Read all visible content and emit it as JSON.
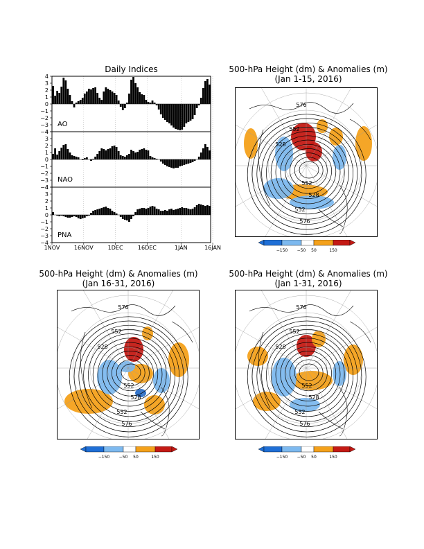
{
  "indices_title": "Daily Indices",
  "map_titles": [
    {
      "line1": "500-hPa Height (dm) & Anomalies (m)",
      "line2": "(Jan 1-15, 2016)"
    },
    {
      "line1": "500-hPa Height (dm) & Anomalies (m)",
      "line2": "(Jan 16-31, 2016)"
    },
    {
      "line1": "500-hPa Height (dm) & Anomalies (m)",
      "line2": "(Jan 1-31, 2016)"
    }
  ],
  "contour_labels": [
    "576",
    "552",
    "528",
    "552",
    "528",
    "552",
    "576"
  ],
  "colorbar": {
    "labels": [
      "-150",
      "-50",
      "50",
      "150"
    ],
    "colors": [
      "#1f6fd6",
      "#7db9ef",
      "#ffffff",
      "#f4a11b",
      "#c41a14"
    ]
  },
  "colors": {
    "positive": "#f4a11b",
    "strong_positive": "#c41a14",
    "negative": "#7db9ef",
    "strong_negative": "#2a6fc9"
  },
  "chart_data": [
    {
      "type": "bar",
      "title": "Daily Indices",
      "x_tick_labels": [
        "1NOV",
        "16NOV",
        "1DEC",
        "16DEC",
        "1JAN",
        "16JAN"
      ],
      "panels": [
        {
          "name": "AO",
          "ylim": [
            -4,
            4
          ],
          "y_ticks": [
            4,
            3,
            2,
            1,
            0,
            -1,
            -2,
            -3,
            -4
          ],
          "values": [
            2.6,
            1.2,
            1.9,
            1.6,
            2.5,
            3.8,
            3.4,
            2.2,
            1.3,
            0.4,
            -0.5,
            0.2,
            0.4,
            0.6,
            0.9,
            1.5,
            1.8,
            2.2,
            2.1,
            2.3,
            2.4,
            1.6,
            0.9,
            0.6,
            1.8,
            2.4,
            2.2,
            2.0,
            1.8,
            1.6,
            1.3,
            0.5,
            -0.4,
            -0.9,
            -0.6,
            0.2,
            1.5,
            3.5,
            3.9,
            3.0,
            2.4,
            1.7,
            1.4,
            1.3,
            0.6,
            0.3,
            0.2,
            0.5,
            0.2,
            -0.2,
            -0.8,
            -1.5,
            -2.0,
            -2.3,
            -2.6,
            -2.8,
            -3.1,
            -3.4,
            -3.6,
            -3.7,
            -3.8,
            -3.7,
            -3.3,
            -2.8,
            -2.6,
            -2.4,
            -2.2,
            -1.6,
            -0.6,
            -0.2,
            0.9,
            2.3,
            3.3,
            3.6,
            2.8
          ]
        },
        {
          "name": "NAO",
          "ylim": [
            -4,
            4
          ],
          "y_ticks": [
            4,
            3,
            2,
            1,
            0,
            -1,
            -2,
            -3,
            -4
          ],
          "values": [
            0.8,
            1.6,
            0.7,
            1.2,
            1.7,
            2.1,
            2.2,
            1.5,
            1.0,
            0.6,
            0.5,
            0.4,
            0.3,
            0.0,
            -0.1,
            0.2,
            0.3,
            0.0,
            -0.2,
            0.1,
            0.4,
            0.8,
            1.2,
            1.6,
            1.5,
            1.3,
            1.5,
            1.6,
            1.9,
            2.0,
            1.8,
            1.2,
            0.6,
            0.5,
            0.4,
            0.6,
            0.8,
            1.4,
            1.2,
            1.0,
            1.1,
            1.4,
            1.5,
            1.6,
            1.4,
            1.3,
            0.5,
            0.3,
            0.2,
            0.1,
            0.0,
            -0.3,
            -0.6,
            -0.8,
            -1.0,
            -1.1,
            -1.2,
            -1.3,
            -1.2,
            -1.2,
            -1.0,
            -0.9,
            -0.8,
            -0.7,
            -0.6,
            -0.5,
            -0.4,
            -0.2,
            0.0,
            0.4,
            1.0,
            1.6,
            2.2,
            1.8,
            1.3
          ]
        },
        {
          "name": "PNA",
          "ylim": [
            -4,
            4
          ],
          "y_ticks": [
            4,
            3,
            2,
            1,
            0,
            -1,
            -2,
            -3,
            -4
          ],
          "values": [
            0.4,
            0.0,
            -0.1,
            -0.2,
            -0.1,
            -0.2,
            -0.3,
            -0.4,
            -0.4,
            -0.3,
            -0.2,
            -0.3,
            -0.5,
            -0.6,
            -0.5,
            -0.4,
            -0.2,
            -0.1,
            0.3,
            0.6,
            0.7,
            0.8,
            0.9,
            1.0,
            1.1,
            1.2,
            1.0,
            0.9,
            0.6,
            0.4,
            0.2,
            0.0,
            -0.3,
            -0.6,
            -0.7,
            -0.8,
            -1.0,
            -0.6,
            -0.2,
            0.4,
            0.8,
            0.9,
            1.0,
            1.0,
            0.9,
            1.0,
            1.2,
            1.3,
            1.2,
            0.9,
            0.8,
            0.6,
            0.6,
            0.7,
            0.6,
            0.8,
            0.9,
            0.7,
            0.8,
            0.9,
            1.0,
            1.1,
            1.0,
            1.0,
            0.9,
            0.8,
            0.9,
            1.1,
            1.4,
            1.6,
            1.5,
            1.4,
            1.3,
            1.4,
            1.3
          ]
        }
      ]
    }
  ]
}
